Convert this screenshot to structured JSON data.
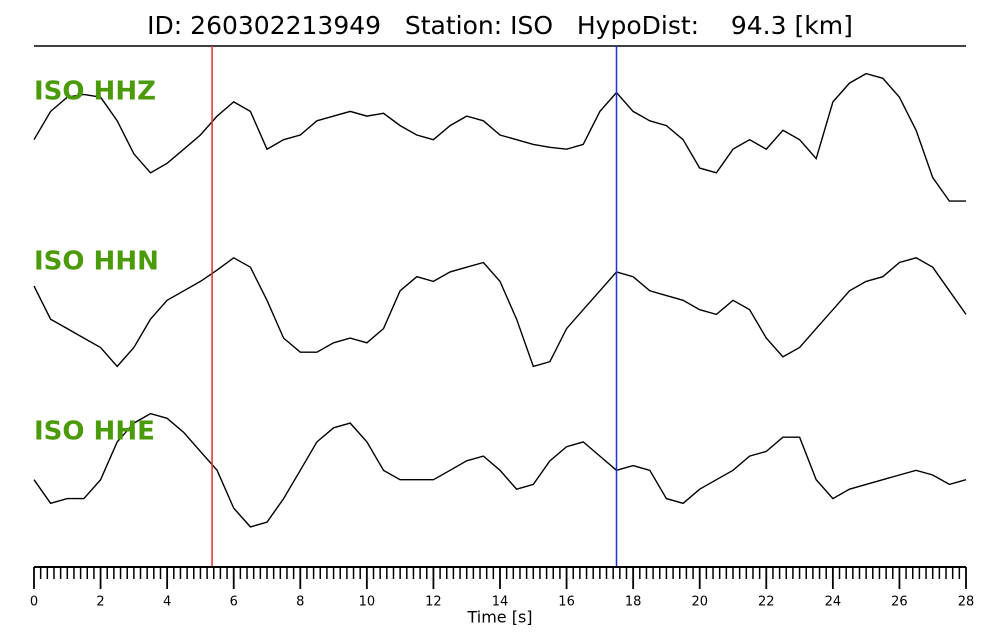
{
  "chart_data": {
    "type": "line",
    "title": "ID: 260302213949   Station: ISO   HypoDist:    94.3 [km]",
    "xlabel": "Time [s]",
    "x": [
      0,
      0.5,
      1,
      1.5,
      2,
      2.5,
      3,
      3.5,
      4,
      4.5,
      5,
      5.5,
      6,
      6.5,
      7,
      7.5,
      8,
      8.5,
      9,
      9.5,
      10,
      10.5,
      11,
      11.5,
      12,
      12.5,
      13,
      13.5,
      14,
      14.5,
      15,
      15.5,
      16,
      16.5,
      17,
      17.5,
      18,
      18.5,
      19,
      19.5,
      20,
      20.5,
      21,
      21.5,
      22,
      22.5,
      23,
      23.5,
      24,
      24.5,
      25,
      25.5,
      26,
      26.5,
      27,
      27.5,
      28
    ],
    "series": [
      {
        "name": "ISO HHZ",
        "color": "#000000",
        "values": [
          -5,
          25,
          40,
          43,
          40,
          15,
          -20,
          -40,
          -30,
          -15,
          0,
          20,
          35,
          25,
          -15,
          -5,
          0,
          15,
          20,
          25,
          20,
          23,
          10,
          0,
          -5,
          10,
          20,
          15,
          0,
          -5,
          -10,
          -13,
          -15,
          -10,
          25,
          45,
          25,
          15,
          10,
          -5,
          -35,
          -40,
          -15,
          -5,
          -15,
          5,
          -5,
          -25,
          35,
          55,
          65,
          60,
          40,
          5,
          -45,
          -70,
          -70
        ]
      },
      {
        "name": "ISO HHN",
        "color": "#000000",
        "values": [
          20,
          -15,
          -25,
          -35,
          -45,
          -65,
          -45,
          -15,
          5,
          15,
          25,
          37,
          50,
          40,
          5,
          -35,
          -50,
          -50,
          -40,
          -35,
          -40,
          -25,
          15,
          30,
          25,
          35,
          40,
          45,
          25,
          -15,
          -65,
          -60,
          -25,
          -5,
          15,
          35,
          30,
          15,
          10,
          5,
          -5,
          -10,
          5,
          -5,
          -35,
          -55,
          -45,
          -25,
          -5,
          15,
          25,
          30,
          45,
          50,
          40,
          15,
          -10
        ]
      },
      {
        "name": "ISO HHE",
        "color": "#000000",
        "values": [
          -5,
          -30,
          -25,
          -25,
          -5,
          35,
          55,
          65,
          60,
          45,
          25,
          5,
          -35,
          -55,
          -50,
          -25,
          5,
          35,
          50,
          55,
          35,
          5,
          -5,
          -5,
          -5,
          5,
          15,
          20,
          5,
          -15,
          -10,
          15,
          30,
          35,
          20,
          5,
          10,
          5,
          -25,
          -30,
          -15,
          -5,
          5,
          20,
          25,
          40,
          40,
          -5,
          -25,
          -15,
          -10,
          -5,
          0,
          5,
          0,
          -10,
          -5
        ]
      }
    ],
    "markers": [
      {
        "x": 5.35,
        "color": "#e03030"
      },
      {
        "x": 17.5,
        "color": "#1f2fdf"
      }
    ],
    "xlim": [
      0,
      28
    ],
    "ylim": [
      -90,
      90
    ],
    "xticks": [
      0,
      2,
      4,
      6,
      8,
      10,
      12,
      14,
      16,
      18,
      20,
      22,
      24,
      26,
      28
    ],
    "xminorticks": [
      0.2,
      0.4,
      0.6,
      0.8,
      1,
      1.2,
      1.4,
      1.6,
      1.8,
      2.2,
      2.4,
      2.6,
      2.8,
      3,
      3.2,
      3.4,
      3.6,
      3.8,
      4.2,
      4.4,
      4.6,
      4.8,
      5,
      5.2,
      5.4,
      5.6,
      5.8,
      6.2,
      6.4,
      6.6,
      6.8,
      7,
      7.2,
      7.4,
      7.6,
      7.8,
      8.2,
      8.4,
      8.6,
      8.8,
      9,
      9.2,
      9.4,
      9.6,
      9.8,
      10.2,
      10.4,
      10.6,
      10.8,
      11,
      11.2,
      11.4,
      11.6,
      11.8,
      12.2,
      12.4,
      12.6,
      12.8,
      13,
      13.2,
      13.4,
      13.6,
      13.8,
      14.2,
      14.4,
      14.6,
      14.8,
      15,
      15.2,
      15.4,
      15.6,
      15.8,
      16.2,
      16.4,
      16.6,
      16.8,
      17,
      17.2,
      17.4,
      17.6,
      17.8,
      18.2,
      18.4,
      18.6,
      18.8,
      19,
      19.2,
      19.4,
      19.6,
      19.8,
      20.2,
      20.4,
      20.6,
      20.8,
      21,
      21.2,
      21.4,
      21.6,
      21.8,
      22.2,
      22.4,
      22.6,
      22.8,
      23,
      23.2,
      23.4,
      23.6,
      23.8,
      24.2,
      24.4,
      24.6,
      24.8,
      25,
      25.2,
      25.4,
      25.6,
      25.8,
      26.2,
      26.4,
      26.6,
      26.8,
      27,
      27.2,
      27.4,
      27.6,
      27.8
    ]
  }
}
